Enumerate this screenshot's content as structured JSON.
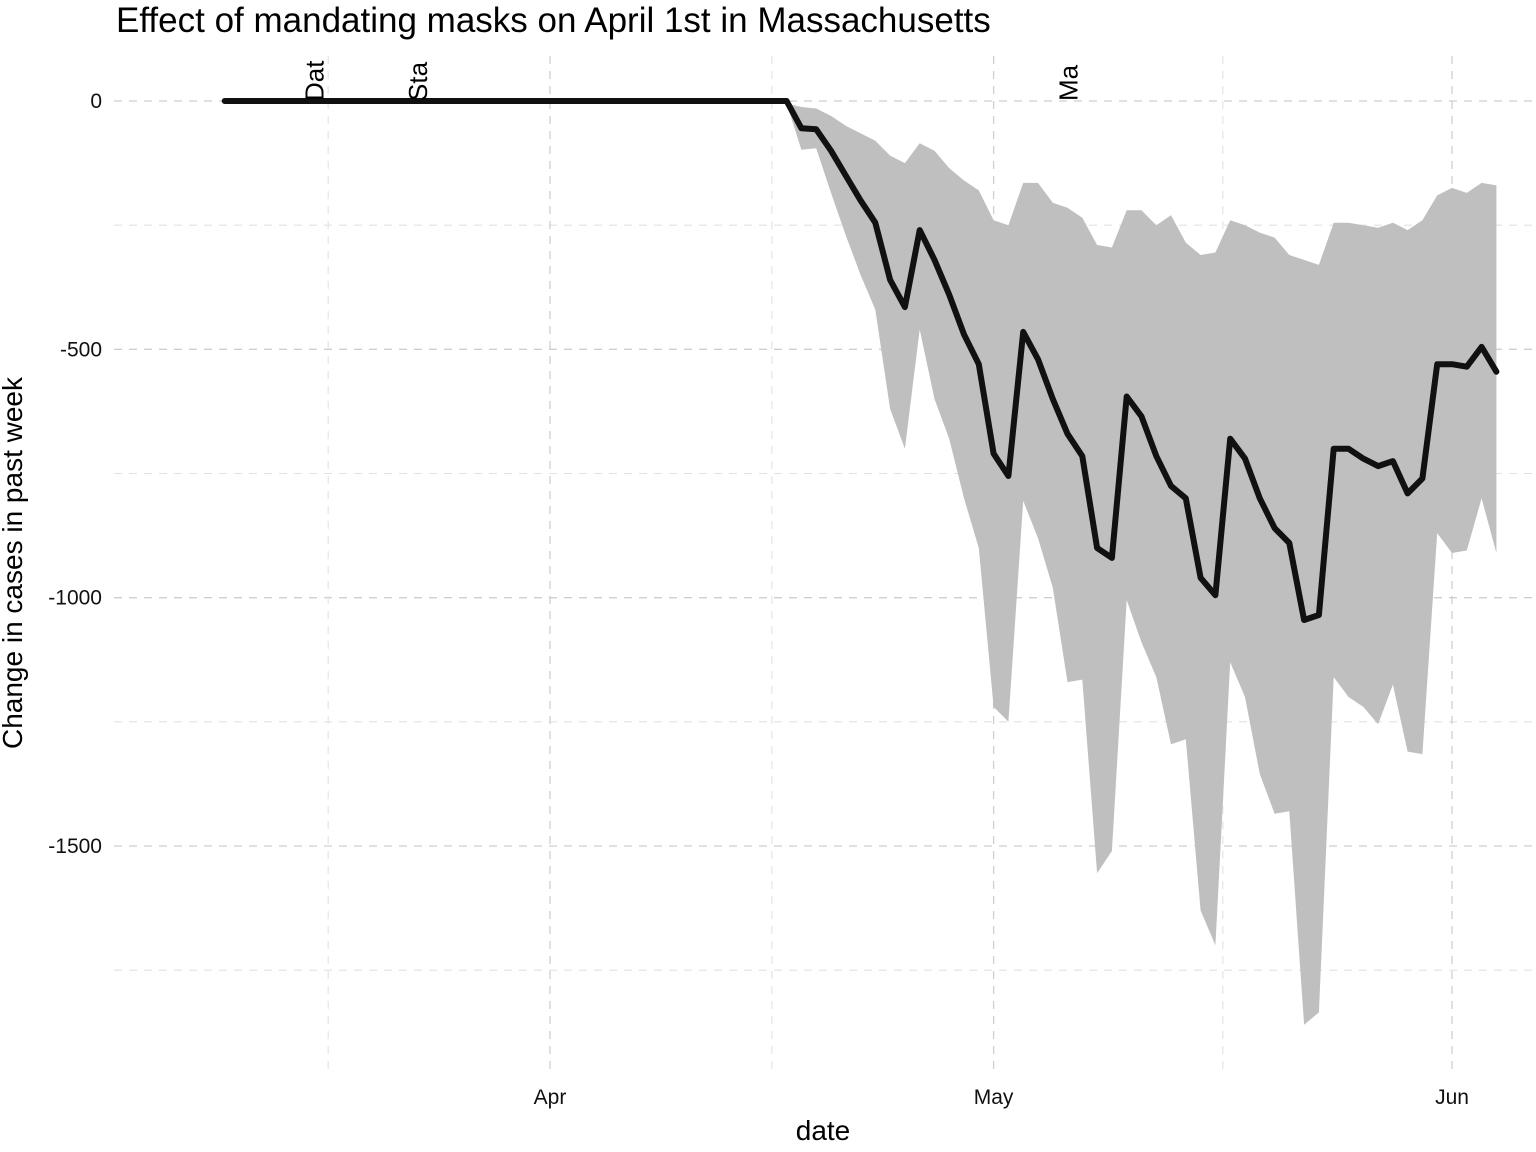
{
  "chart_data": {
    "type": "line",
    "title": "Effect of mandating masks on April 1st in Massachusetts",
    "xlabel": "date",
    "ylabel": "Change in cases in past week",
    "x_ticks": [
      {
        "date": "2020-04-01",
        "label": "Apr"
      },
      {
        "date": "2020-05-01",
        "label": "May"
      },
      {
        "date": "2020-06-01",
        "label": "Jun"
      }
    ],
    "y_ticks": [
      0,
      -500,
      -1000,
      -1500
    ],
    "xlim": [
      "2020-03-06",
      "2020-06-03"
    ],
    "ylim": [
      -1940,
      100
    ],
    "grid": true,
    "legend": "none",
    "events": [
      {
        "date": "2020-03-16",
        "label": "Dat"
      },
      {
        "date": "2020-03-23",
        "label": "Sta"
      },
      {
        "date": "2020-05-06",
        "label": "Ma"
      }
    ],
    "series": [
      {
        "x": [
          "2020-03-10",
          "2020-03-11",
          "2020-03-12",
          "2020-03-13",
          "2020-03-14",
          "2020-03-15",
          "2020-03-16",
          "2020-03-17",
          "2020-03-18",
          "2020-03-19",
          "2020-03-20",
          "2020-03-21",
          "2020-03-22",
          "2020-03-23",
          "2020-03-24",
          "2020-03-25",
          "2020-03-26",
          "2020-03-27",
          "2020-03-28",
          "2020-03-29",
          "2020-03-30",
          "2020-03-31",
          "2020-04-01",
          "2020-04-02",
          "2020-04-03",
          "2020-04-04",
          "2020-04-05",
          "2020-04-06",
          "2020-04-07",
          "2020-04-08",
          "2020-04-09",
          "2020-04-10",
          "2020-04-11",
          "2020-04-12",
          "2020-04-13",
          "2020-04-14",
          "2020-04-15",
          "2020-04-16",
          "2020-04-17",
          "2020-04-18",
          "2020-04-19",
          "2020-04-20",
          "2020-04-21",
          "2020-04-22",
          "2020-04-23",
          "2020-04-24",
          "2020-04-25",
          "2020-04-26",
          "2020-04-27",
          "2020-04-28",
          "2020-04-29",
          "2020-04-30",
          "2020-05-01",
          "2020-05-02",
          "2020-05-03",
          "2020-05-04",
          "2020-05-05",
          "2020-05-06",
          "2020-05-07",
          "2020-05-08",
          "2020-05-09",
          "2020-05-10",
          "2020-05-11",
          "2020-05-12",
          "2020-05-13",
          "2020-05-14",
          "2020-05-15",
          "2020-05-16",
          "2020-05-17",
          "2020-05-18",
          "2020-05-19",
          "2020-05-20",
          "2020-05-21",
          "2020-05-22",
          "2020-05-23",
          "2020-05-24",
          "2020-05-25",
          "2020-05-26",
          "2020-05-27",
          "2020-05-28",
          "2020-05-29",
          "2020-05-30",
          "2020-05-31",
          "2020-06-01",
          "2020-06-02"
        ],
        "y": [
          0,
          0,
          0,
          0,
          0,
          0,
          0,
          0,
          0,
          0,
          0,
          0,
          0,
          0,
          0,
          0,
          0,
          0,
          0,
          0,
          0,
          0,
          0,
          0,
          0,
          0,
          0,
          0,
          0,
          0,
          0,
          0,
          0,
          0,
          0,
          0,
          0,
          0,
          0,
          -55,
          -57,
          -100,
          -150,
          -200,
          -245,
          -360,
          -415,
          -260,
          -320,
          -390,
          -470,
          -530,
          -710,
          -755,
          -465,
          -520,
          -600,
          -670,
          -715,
          -900,
          -920,
          -595,
          -635,
          -715,
          -775,
          -800,
          -960,
          -995,
          -680,
          -720,
          -800,
          -860,
          -890,
          -1045,
          -1035,
          -700,
          -700,
          -720,
          -735,
          -725,
          -790,
          -760,
          -530,
          -530,
          -535
        ],
        "upper": [
          0,
          0,
          0,
          0,
          0,
          0,
          0,
          0,
          0,
          0,
          0,
          0,
          0,
          0,
          0,
          0,
          0,
          0,
          0,
          0,
          0,
          0,
          0,
          0,
          0,
          0,
          0,
          0,
          0,
          0,
          0,
          0,
          0,
          0,
          0,
          0,
          0,
          0,
          -5,
          -12,
          -15,
          -30,
          -50,
          -65,
          -80,
          -110,
          -125,
          -85,
          -100,
          -135,
          -160,
          -180,
          -240,
          -250,
          -165,
          -165,
          -205,
          -215,
          -235,
          -290,
          -295,
          -220,
          -220,
          -250,
          -230,
          -285,
          -310,
          -305,
          -240,
          -250,
          -265,
          -275,
          -310,
          -320,
          -330,
          -245,
          -245,
          -250,
          -255,
          -245,
          -260,
          -240,
          -190,
          -175,
          -185
        ],
        "lower": [
          0,
          0,
          0,
          0,
          0,
          0,
          0,
          0,
          0,
          0,
          0,
          0,
          0,
          0,
          0,
          0,
          0,
          0,
          0,
          0,
          0,
          0,
          0,
          0,
          0,
          0,
          0,
          0,
          0,
          0,
          0,
          0,
          0,
          0,
          0,
          0,
          0,
          0,
          -5,
          -98,
          -95,
          -185,
          -270,
          -350,
          -420,
          -620,
          -700,
          -460,
          -600,
          -680,
          -800,
          -900,
          -1220,
          -1250,
          -805,
          -880,
          -980,
          -1170,
          -1165,
          -1555,
          -1510,
          -1005,
          -1090,
          -1160,
          -1295,
          -1285,
          -1630,
          -1700,
          -1130,
          -1200,
          -1355,
          -1435,
          -1430,
          -1860,
          -1835,
          -1160,
          -1200,
          -1220,
          -1255,
          -1175,
          -1310,
          -1315,
          -870,
          -910,
          -905
        ]
      }
    ],
    "tail": {
      "x": [
        "2020-06-03",
        "2020-06-04"
      ],
      "y": [
        -495,
        -545
      ],
      "upper": [
        -165,
        -170
      ],
      "lower": [
        -800,
        -910
      ]
    }
  }
}
